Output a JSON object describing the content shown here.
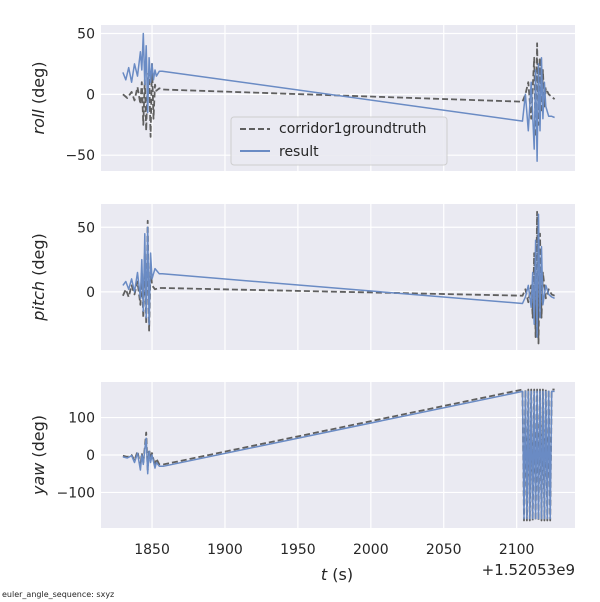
{
  "figure": {
    "footnote": "euler_angle_sequence: sxyz",
    "xlabel_italic": "t",
    "xlabel_unit": " (s)",
    "x_offset_label": "+1.52053e9"
  },
  "legend": {
    "entries": [
      {
        "label": "corridor1groundtruth",
        "style": "dashed",
        "color": "#5f5f5f"
      },
      {
        "label": "result",
        "style": "solid",
        "color": "#6a8bc4"
      }
    ]
  },
  "colors": {
    "axes_bg": "#eaeaf2",
    "grid": "#ffffff",
    "groundtruth": "#5f5f5f",
    "result": "#6a8bc4"
  },
  "chart_data": [
    {
      "type": "line",
      "ylabel_italic": "roll",
      "ylabel_unit": " (deg)",
      "xlim": [
        1815,
        2140
      ],
      "ylim": [
        -63,
        57
      ],
      "x_ticks": [
        1850,
        1900,
        1950,
        2000,
        2050,
        2100
      ],
      "y_ticks": [
        50,
        0,
        -50
      ],
      "grid": true,
      "legend_position": "lower-center",
      "series": [
        {
          "name": "corridor1groundtruth",
          "style": "dashed",
          "x": [
            1830,
            1833,
            1836,
            1838,
            1840,
            1842,
            1843,
            1844,
            1845,
            1846,
            1847,
            1848,
            1849,
            1850,
            1851,
            1852,
            1853,
            1855,
            1857,
            2104,
            2106,
            2108,
            2110,
            2112,
            2113,
            2114,
            2115,
            2116,
            2117,
            2118,
            2119,
            2120,
            2122,
            2124,
            2126
          ],
          "y": [
            0,
            -3,
            2,
            -5,
            6,
            -8,
            10,
            -25,
            12,
            -30,
            15,
            18,
            -35,
            25,
            -20,
            8,
            3,
            5,
            4,
            -6,
            0,
            10,
            -20,
            30,
            -35,
            42,
            -25,
            30,
            -15,
            20,
            -10,
            5,
            0,
            -2,
            -4
          ]
        },
        {
          "name": "result",
          "style": "solid",
          "x": [
            1830,
            1832,
            1834,
            1836,
            1838,
            1840,
            1842,
            1843,
            1844,
            1845,
            1846,
            1847,
            1848,
            1849,
            1850,
            1851,
            1852,
            1853,
            1855,
            1857,
            2104,
            2106,
            2108,
            2110,
            2112,
            2113,
            2114,
            2115,
            2116,
            2117,
            2118,
            2119,
            2120,
            2122,
            2124,
            2126
          ],
          "y": [
            18,
            12,
            22,
            10,
            25,
            15,
            35,
            20,
            50,
            8,
            40,
            -15,
            30,
            10,
            25,
            12,
            20,
            15,
            19,
            19,
            -22,
            0,
            -30,
            10,
            -45,
            20,
            -55,
            25,
            -30,
            30,
            -20,
            10,
            -10,
            -18,
            -18,
            -19
          ]
        }
      ]
    },
    {
      "type": "line",
      "ylabel_italic": "pitch",
      "ylabel_unit": " (deg)",
      "xlim": [
        1815,
        2140
      ],
      "ylim": [
        -45,
        68
      ],
      "x_ticks": [
        1850,
        1900,
        1950,
        2000,
        2050,
        2100
      ],
      "y_ticks": [
        50,
        0
      ],
      "grid": true,
      "series": [
        {
          "name": "corridor1groundtruth",
          "style": "dashed",
          "x": [
            1830,
            1832,
            1834,
            1836,
            1838,
            1840,
            1842,
            1843,
            1844,
            1845,
            1846,
            1847,
            1848,
            1849,
            1850,
            1852,
            1855,
            1857,
            2104,
            2106,
            2108,
            2110,
            2111,
            2112,
            2113,
            2114,
            2115,
            2116,
            2117,
            2118,
            2120,
            2122,
            2124,
            2126
          ],
          "y": [
            -3,
            2,
            -4,
            5,
            -2,
            8,
            -10,
            15,
            -20,
            30,
            -25,
            55,
            -30,
            20,
            5,
            2,
            3,
            3,
            -3,
            2,
            -8,
            5,
            -20,
            30,
            -35,
            62,
            -40,
            45,
            -20,
            15,
            -5,
            2,
            -2,
            -3
          ]
        },
        {
          "name": "result",
          "style": "solid",
          "x": [
            1830,
            1832,
            1834,
            1836,
            1838,
            1840,
            1842,
            1843,
            1844,
            1845,
            1846,
            1847,
            1848,
            1849,
            1850,
            1852,
            1855,
            1857,
            2104,
            2106,
            2108,
            2110,
            2111,
            2112,
            2113,
            2114,
            2115,
            2116,
            2117,
            2118,
            2120,
            2122,
            2124,
            2126
          ],
          "y": [
            5,
            8,
            2,
            10,
            0,
            15,
            -5,
            25,
            -15,
            45,
            -20,
            50,
            -25,
            30,
            10,
            18,
            14,
            14,
            -9,
            -4,
            5,
            -12,
            15,
            -25,
            40,
            -35,
            60,
            -20,
            35,
            -10,
            5,
            -2,
            -4,
            -5
          ]
        }
      ]
    },
    {
      "type": "line",
      "ylabel_italic": "yaw",
      "ylabel_unit": " (deg)",
      "xlim": [
        1815,
        2140
      ],
      "ylim": [
        -195,
        195
      ],
      "x_ticks": [
        1850,
        1900,
        1950,
        2000,
        2050,
        2100
      ],
      "y_ticks": [
        100,
        0,
        -100
      ],
      "grid": true,
      "series": [
        {
          "name": "corridor1groundtruth",
          "style": "dashed",
          "x": [
            1830,
            1833,
            1836,
            1838,
            1840,
            1842,
            1843,
            1844,
            1845,
            1846,
            1847,
            1848,
            1849,
            1850,
            1852,
            1853,
            1855,
            1858,
            2104,
            2105,
            2106,
            2107,
            2108,
            2109,
            2110,
            2111,
            2112,
            2113,
            2114,
            2115,
            2116,
            2117,
            2118,
            2119,
            2120,
            2121,
            2122,
            2123,
            2124,
            2125,
            2126
          ],
          "y": [
            -2,
            -5,
            0,
            -15,
            10,
            -30,
            5,
            -20,
            20,
            60,
            -40,
            15,
            -10,
            5,
            -30,
            -10,
            -25,
            -25,
            175,
            -175,
            175,
            -175,
            175,
            -175,
            175,
            -175,
            175,
            -175,
            175,
            -175,
            175,
            -175,
            175,
            -175,
            175,
            -175,
            175,
            -175,
            175,
            175,
            175
          ]
        },
        {
          "name": "result",
          "style": "solid",
          "x": [
            1830,
            1833,
            1836,
            1838,
            1840,
            1842,
            1843,
            1844,
            1845,
            1846,
            1847,
            1848,
            1849,
            1850,
            1852,
            1853,
            1855,
            1858,
            2104,
            2105,
            2106,
            2107,
            2108,
            2109,
            2110,
            2111,
            2112,
            2113,
            2114,
            2115,
            2116,
            2117,
            2118,
            2119,
            2120,
            2121,
            2122,
            2123,
            2124,
            2125,
            2126
          ],
          "y": [
            -5,
            -8,
            -2,
            -20,
            5,
            -40,
            0,
            -25,
            15,
            45,
            -50,
            10,
            -20,
            0,
            -35,
            -20,
            -30,
            -30,
            170,
            -170,
            170,
            -170,
            170,
            -170,
            170,
            -170,
            170,
            -170,
            170,
            -170,
            170,
            -170,
            170,
            -170,
            170,
            -170,
            170,
            -170,
            170,
            170,
            170
          ]
        }
      ]
    }
  ]
}
